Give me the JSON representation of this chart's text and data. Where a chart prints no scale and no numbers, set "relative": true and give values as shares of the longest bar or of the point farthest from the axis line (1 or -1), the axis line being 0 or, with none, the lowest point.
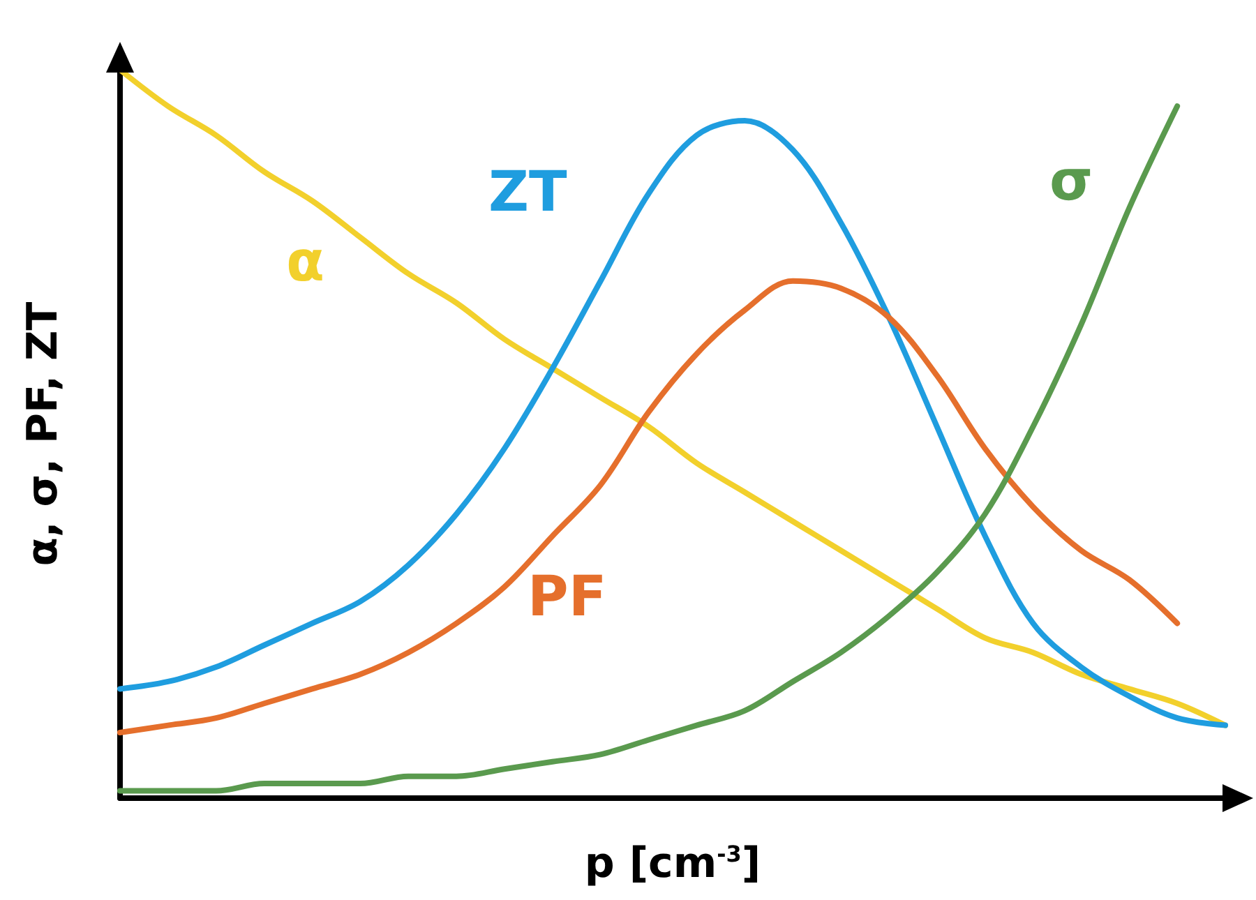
{
  "chart_data": {
    "type": "line",
    "relative": true,
    "xlabel": "p [cm$^{-3}$]",
    "ylabel": "α, σ, PF, ZT",
    "marker": "none",
    "line_style": "solid",
    "grid": false,
    "legend": false,
    "categories": [
      null,
      null,
      null,
      null,
      null,
      null,
      null,
      null,
      null,
      null,
      null,
      null,
      null,
      null,
      null,
      null,
      null,
      null,
      null,
      null,
      null,
      null,
      null,
      null
    ],
    "series": [
      {
        "name": "α",
        "color": "#f2d02c",
        "values": [
          1.0,
          0.95,
          0.91,
          0.86,
          0.82,
          0.77,
          0.72,
          0.68,
          0.63,
          0.59,
          0.55,
          0.51,
          0.46,
          0.42,
          0.38,
          0.34,
          0.3,
          0.26,
          0.22,
          0.2,
          0.17,
          0.15,
          0.13,
          0.1
        ]
      },
      {
        "name": "ZT",
        "color": "#1f9ddf",
        "values": [
          0.15,
          0.16,
          0.18,
          0.21,
          0.24,
          0.27,
          0.32,
          0.39,
          0.48,
          0.59,
          0.71,
          0.83,
          0.91,
          0.93,
          0.89,
          0.79,
          0.66,
          0.51,
          0.36,
          0.24,
          0.18,
          0.14,
          0.11,
          0.1
        ]
      },
      {
        "name": "PF",
        "color": "#e56f2c",
        "values": [
          0.09,
          0.1,
          0.11,
          0.13,
          0.15,
          0.17,
          0.2,
          0.24,
          0.29,
          0.36,
          0.43,
          0.53,
          0.61,
          0.67,
          0.71,
          0.7,
          0.66,
          0.58,
          0.48,
          0.4,
          0.34,
          0.3,
          0.24,
          null
        ]
      },
      {
        "name": "σ",
        "color": "#5a9a4e",
        "values": [
          0.01,
          0.01,
          0.01,
          0.02,
          0.02,
          0.02,
          0.03,
          0.03,
          0.04,
          0.05,
          0.06,
          0.08,
          0.1,
          0.12,
          0.16,
          0.2,
          0.25,
          0.31,
          0.39,
          0.51,
          0.65,
          0.81,
          0.95,
          null
        ]
      }
    ]
  }
}
